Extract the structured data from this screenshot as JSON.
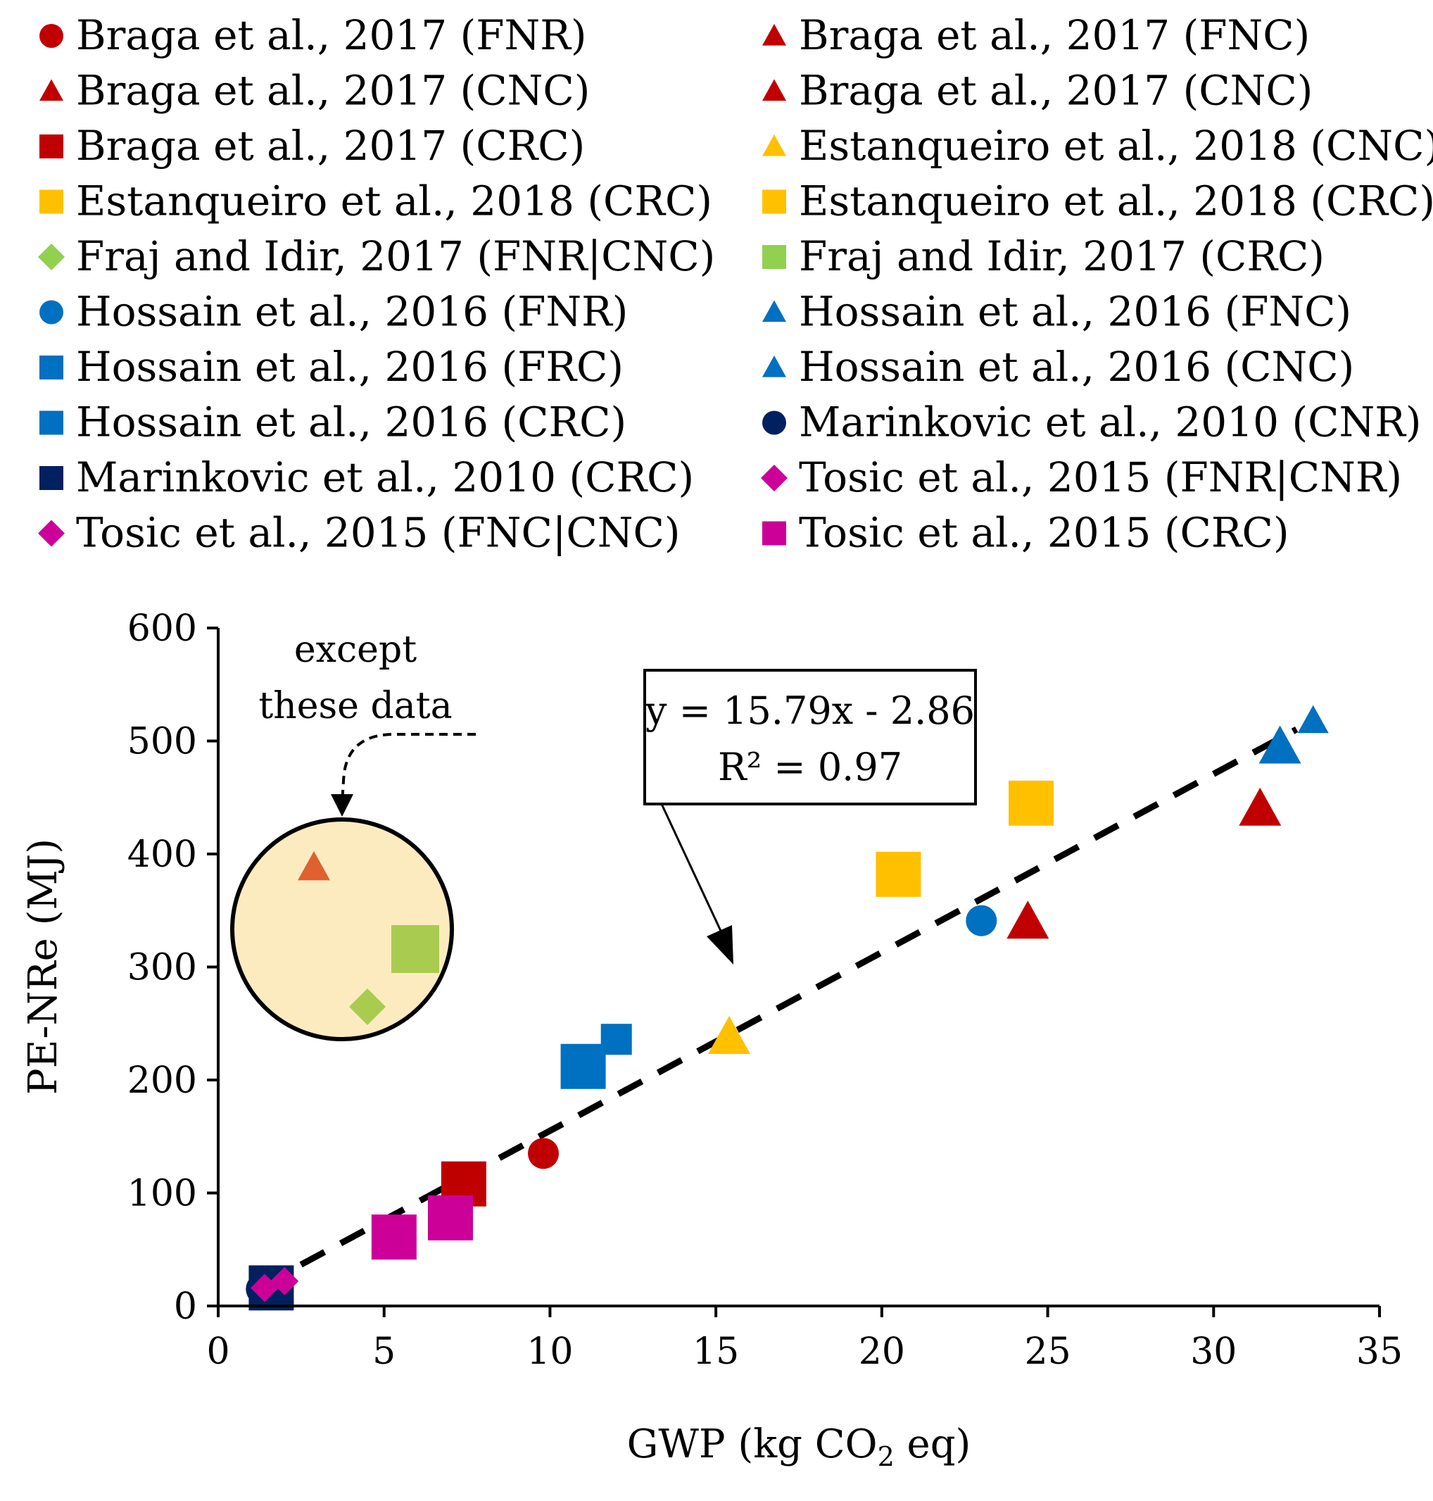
{
  "chart_data": {
    "type": "scatter",
    "title": "",
    "xlabel": "GWP (kg CO",
    "xlabel_sub": "2",
    "xlabel_end": " eq)",
    "ylabel": "PE-NRe (MJ)",
    "xlim": [
      0,
      35
    ],
    "ylim": [
      0,
      600
    ],
    "x_ticks": [
      0,
      5,
      10,
      15,
      20,
      25,
      30,
      35
    ],
    "y_ticks": [
      0,
      100,
      200,
      300,
      400,
      500,
      600
    ],
    "legend_position": "top",
    "series": [
      {
        "name": "Braga et al., 2017 (FNR)",
        "marker": "circle",
        "color": "#C00000",
        "points": [
          [
            9.8,
            135
          ]
        ]
      },
      {
        "name": "Braga et al., 2017 (FNC)",
        "marker": "triangle",
        "color": "#C00000",
        "points": [
          [
            31.4,
            440
          ]
        ]
      },
      {
        "name": "Braga et al., 2017 (CNC)",
        "marker": "triangle",
        "color": "#C00000",
        "points": [
          [
            24.4,
            340
          ]
        ]
      },
      {
        "name": "Braga et al., 2017 (CNC)",
        "marker": "triangle",
        "color": "#C00000",
        "points": []
      },
      {
        "name": "Braga et al., 2017 (CRC)",
        "marker": "square",
        "color": "#C00000",
        "points": [
          [
            7.4,
            108
          ]
        ]
      },
      {
        "name": "Estanqueiro et al., 2018 (CNC)",
        "marker": "triangle",
        "color": "#FFC000",
        "points": [
          [
            15.4,
            238
          ]
        ]
      },
      {
        "name": "Estanqueiro et al., 2018 (CRC)",
        "marker": "square",
        "color": "#FFC000",
        "points": [
          [
            20.5,
            382
          ],
          [
            24.5,
            445
          ]
        ]
      },
      {
        "name": "Estanqueiro et al., 2018 (CRC)",
        "marker": "square",
        "color": "#FFC000",
        "points": []
      },
      {
        "name": "Fraj and Idir, 2017 (FNR|CNC)",
        "marker": "diamond",
        "color": "#92D050",
        "points": []
      },
      {
        "name": "Fraj and Idir, 2017 (CRC)",
        "marker": "square",
        "color": "#92D050",
        "points": []
      },
      {
        "name": "Hossain et al., 2016 (FNR)",
        "marker": "circle",
        "color": "#0070C0",
        "points": [
          [
            23.0,
            341
          ]
        ]
      },
      {
        "name": "Hossain et al., 2016 (FNC)",
        "marker": "triangle",
        "color": "#0070C0",
        "points": [
          [
            32.0,
            495
          ]
        ]
      },
      {
        "name": "Hossain et al., 2016 (FRC)",
        "marker": "square",
        "color": "#0070C0",
        "points": [
          [
            11.0,
            212
          ]
        ]
      },
      {
        "name": "Hossain et al., 2016 (CNC)",
        "marker": "triangle",
        "color": "#0070C0",
        "points": [
          [
            33.0,
            518
          ]
        ]
      },
      {
        "name": "Hossain et al., 2016 (CRC)",
        "marker": "square",
        "color": "#0070C0",
        "points": [
          [
            12.0,
            236
          ]
        ]
      },
      {
        "name": "Marinkovic et al., 2010 (CNR)",
        "marker": "circle",
        "color": "#002060",
        "points": [
          [
            1.3,
            15
          ]
        ]
      },
      {
        "name": "Marinkovic et al., 2010 (CRC)",
        "marker": "square",
        "color": "#002060",
        "points": [
          [
            1.6,
            16
          ]
        ]
      },
      {
        "name": "Tosic et al., 2015 (FNR|CNR)",
        "marker": "diamond",
        "color": "#CC0099",
        "points": [
          [
            1.4,
            16
          ]
        ]
      },
      {
        "name": "Tosic et al., 2015 (FNC|CNC)",
        "marker": "diamond",
        "color": "#CC0099",
        "points": [
          [
            2.0,
            22
          ]
        ]
      },
      {
        "name": "Tosic et al., 2015 (CRC)",
        "marker": "square",
        "color": "#CC0099",
        "points": [
          [
            5.3,
            61
          ],
          [
            7.0,
            78
          ]
        ]
      }
    ],
    "trendline": {
      "slope": 15.79,
      "intercept": -2.86,
      "x_range": [
        1.3,
        32.5
      ],
      "style": "dashed"
    },
    "annotations": {
      "equation": "y = 15.79x - 2.86",
      "r_squared": "R² = 0.97",
      "except_line1": "except",
      "except_line2": "these data"
    },
    "excluded_points": [
      {
        "marker": "triangle",
        "color": "#E06030"
      },
      {
        "marker": "square",
        "color": "#A9CC50"
      },
      {
        "marker": "diamond",
        "color": "#A9CC50"
      }
    ]
  }
}
